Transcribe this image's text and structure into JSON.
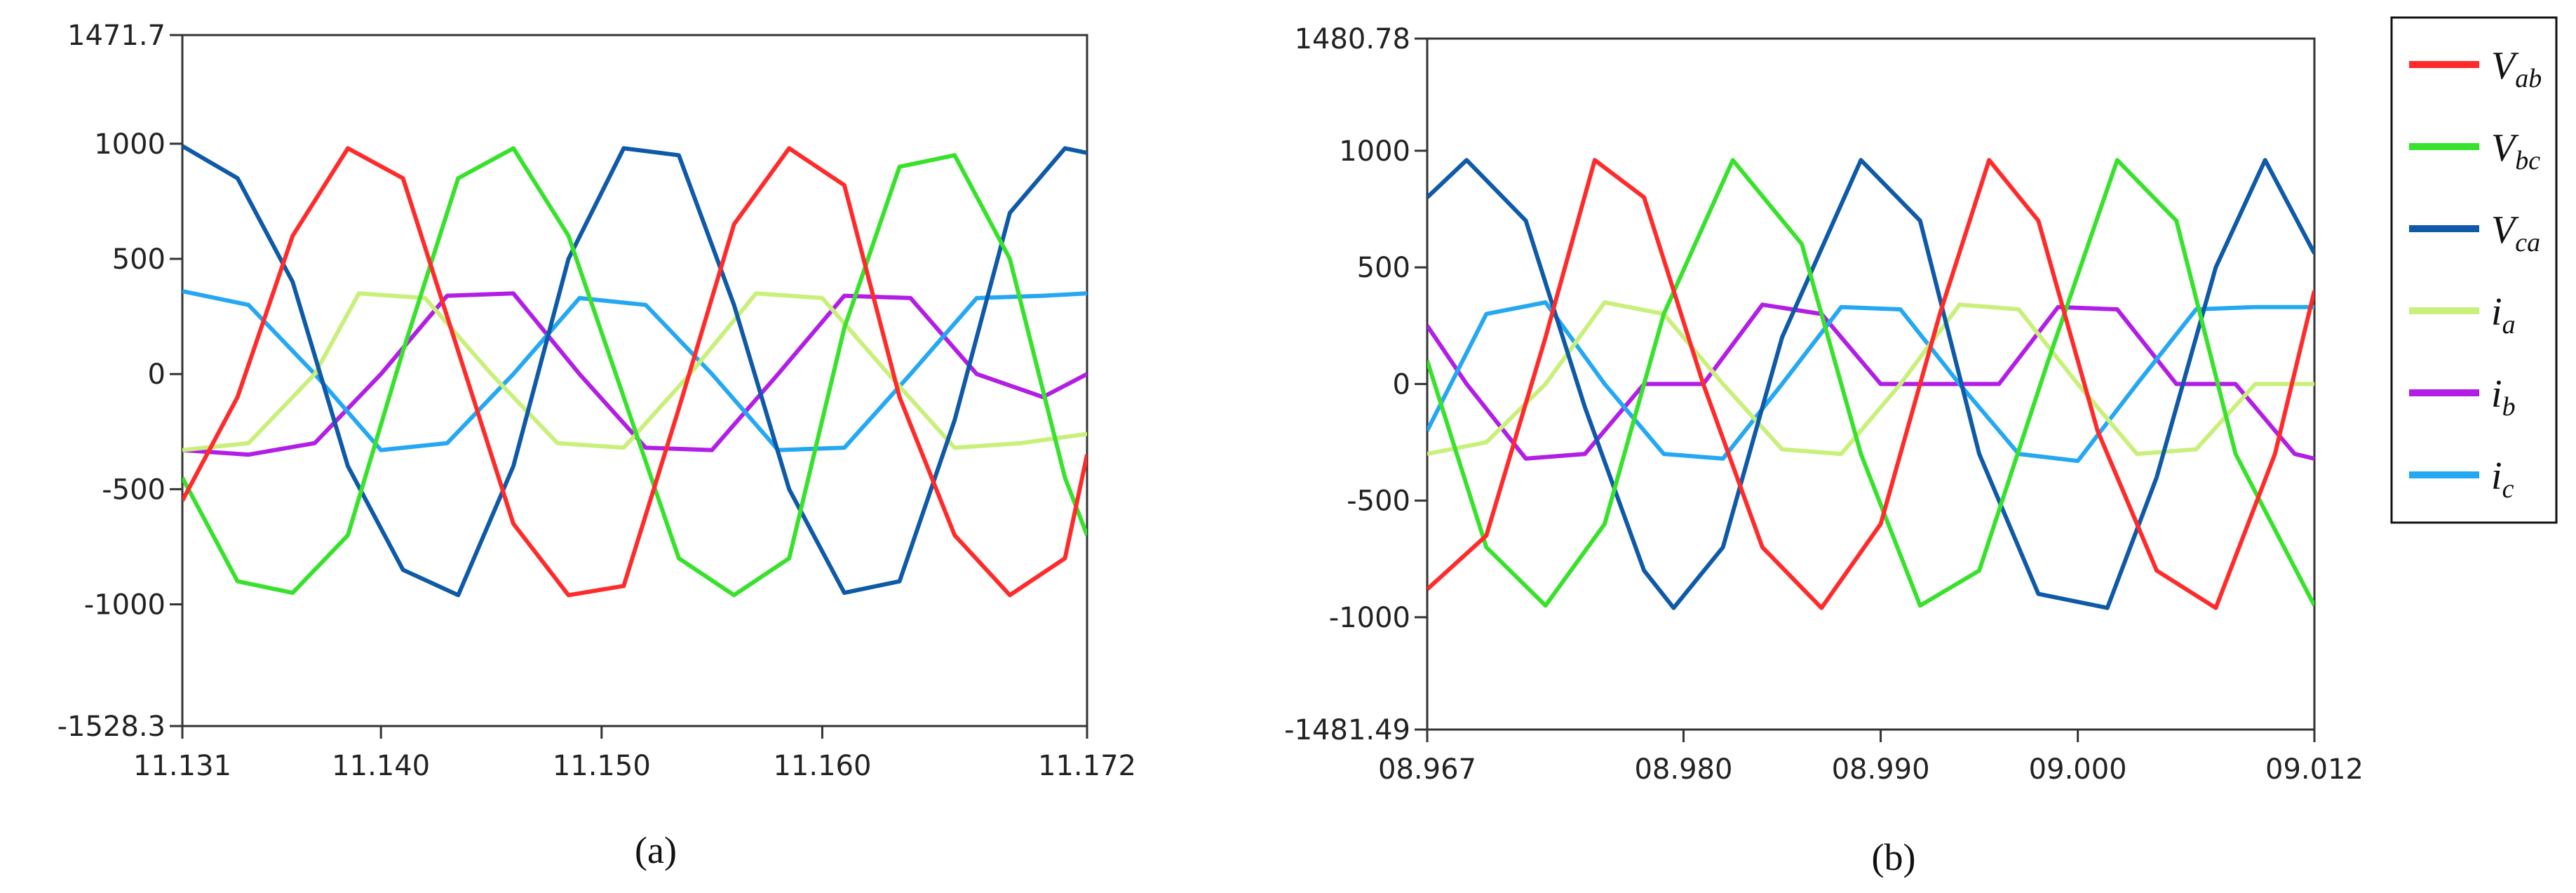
{
  "colors": {
    "Vab": "#ff2b2b",
    "Vbc": "#38e22c",
    "Vca": "#0f5aa8",
    "ia": "#c8f07a",
    "ib": "#b21ee6",
    "ic": "#25a8f2"
  },
  "legend": [
    {
      "key": "Vab",
      "main": "V",
      "sub": "ab"
    },
    {
      "key": "Vbc",
      "main": "V",
      "sub": "bc"
    },
    {
      "key": "Vca",
      "main": "V",
      "sub": "ca"
    },
    {
      "key": "ia",
      "main": "i",
      "sub": "a"
    },
    {
      "key": "ib",
      "main": "i",
      "sub": "b"
    },
    {
      "key": "ic",
      "main": "i",
      "sub": "c"
    }
  ],
  "chart_data": [
    {
      "type": "line",
      "caption": "(a)",
      "xlim": [
        11.131,
        11.172
      ],
      "ylim": [
        -1528.3,
        1471.7
      ],
      "x_ticks": [
        {
          "value": 11.131,
          "label": "11.131"
        },
        {
          "value": 11.14,
          "label": "11.140"
        },
        {
          "value": 11.15,
          "label": "11.150"
        },
        {
          "value": 11.16,
          "label": "11.160"
        },
        {
          "value": 11.172,
          "label": "11.172"
        }
      ],
      "y_ticks": [
        {
          "value": 1471.7,
          "label": "1471.7"
        },
        {
          "value": 1000,
          "label": "1000"
        },
        {
          "value": 500,
          "label": "500"
        },
        {
          "value": 0,
          "label": "0"
        },
        {
          "value": -500,
          "label": "-500"
        },
        {
          "value": -1000,
          "label": "-1000"
        },
        {
          "value": -1528.3,
          "label": "-1528.3"
        }
      ],
      "grid": false,
      "series": [
        {
          "key": "Vab",
          "x": [
            11.131,
            11.1335,
            11.136,
            11.1385,
            11.141,
            11.1435,
            11.146,
            11.1485,
            11.151,
            11.1535,
            11.156,
            11.1585,
            11.161,
            11.1635,
            11.166,
            11.1685,
            11.171,
            11.172
          ],
          "y": [
            -550,
            -100,
            600,
            980,
            850,
            100,
            -650,
            -960,
            -920,
            -150,
            650,
            980,
            820,
            -100,
            -700,
            -960,
            -800,
            -350
          ]
        },
        {
          "key": "Vbc",
          "x": [
            11.131,
            11.1335,
            11.136,
            11.1385,
            11.141,
            11.1435,
            11.146,
            11.1485,
            11.151,
            11.1535,
            11.156,
            11.1585,
            11.161,
            11.1635,
            11.166,
            11.1685,
            11.171,
            11.172
          ],
          "y": [
            -450,
            -900,
            -950,
            -700,
            100,
            850,
            980,
            600,
            -100,
            -800,
            -960,
            -800,
            200,
            900,
            950,
            500,
            -450,
            -700
          ]
        },
        {
          "key": "Vca",
          "x": [
            11.131,
            11.1335,
            11.136,
            11.1385,
            11.141,
            11.1435,
            11.146,
            11.1485,
            11.151,
            11.1535,
            11.156,
            11.1585,
            11.161,
            11.1635,
            11.166,
            11.1685,
            11.171,
            11.172
          ],
          "y": [
            990,
            850,
            400,
            -400,
            -850,
            -960,
            -400,
            500,
            980,
            950,
            300,
            -500,
            -950,
            -900,
            -200,
            700,
            980,
            960
          ]
        },
        {
          "key": "ia",
          "x": [
            11.131,
            11.134,
            11.137,
            11.139,
            11.142,
            11.145,
            11.148,
            11.151,
            11.154,
            11.157,
            11.16,
            11.163,
            11.166,
            11.169,
            11.172
          ],
          "y": [
            -330,
            -300,
            0,
            350,
            330,
            0,
            -300,
            -320,
            0,
            350,
            330,
            0,
            -320,
            -300,
            -260
          ]
        },
        {
          "key": "ib",
          "x": [
            11.131,
            11.134,
            11.137,
            11.14,
            11.143,
            11.146,
            11.149,
            11.152,
            11.155,
            11.158,
            11.161,
            11.164,
            11.167,
            11.17,
            11.172
          ],
          "y": [
            -330,
            -350,
            -300,
            0,
            340,
            350,
            0,
            -320,
            -330,
            0,
            340,
            330,
            0,
            -100,
            0
          ]
        },
        {
          "key": "ic",
          "x": [
            11.131,
            11.134,
            11.137,
            11.14,
            11.143,
            11.146,
            11.149,
            11.152,
            11.155,
            11.158,
            11.161,
            11.164,
            11.167,
            11.17,
            11.172
          ],
          "y": [
            360,
            300,
            0,
            -330,
            -300,
            0,
            330,
            300,
            0,
            -330,
            -320,
            0,
            330,
            340,
            350
          ]
        }
      ]
    },
    {
      "type": "line",
      "caption": "(b)",
      "xlim": [
        8.967,
        9.012
      ],
      "ylim": [
        -1481.49,
        1480.78
      ],
      "x_ticks": [
        {
          "value": 8.967,
          "label": "08.967"
        },
        {
          "value": 8.98,
          "label": "08.980"
        },
        {
          "value": 8.99,
          "label": "08.990"
        },
        {
          "value": 9.0,
          "label": "09.000"
        },
        {
          "value": 9.012,
          "label": "09.012"
        }
      ],
      "y_ticks": [
        {
          "value": 1480.78,
          "label": "1480.78"
        },
        {
          "value": 1000,
          "label": "1000"
        },
        {
          "value": 500,
          "label": "500"
        },
        {
          "value": 0,
          "label": "0"
        },
        {
          "value": -500,
          "label": "-500"
        },
        {
          "value": -1000,
          "label": "-1000"
        },
        {
          "value": -1481.49,
          "label": "-1481.49"
        }
      ],
      "grid": false,
      "series": [
        {
          "key": "Vab",
          "x": [
            8.967,
            8.97,
            8.973,
            8.9755,
            8.978,
            8.981,
            8.984,
            8.987,
            8.99,
            8.993,
            8.9955,
            8.998,
            9.001,
            9.004,
            9.007,
            9.01,
            9.012
          ],
          "y": [
            -880,
            -650,
            200,
            960,
            800,
            0,
            -700,
            -960,
            -600,
            300,
            960,
            700,
            -200,
            -800,
            -960,
            -300,
            400
          ]
        },
        {
          "key": "Vbc",
          "x": [
            8.967,
            8.97,
            8.973,
            8.976,
            8.979,
            8.9825,
            8.986,
            8.989,
            8.992,
            8.995,
            8.9985,
            9.002,
            9.005,
            9.008,
            9.012
          ],
          "y": [
            100,
            -700,
            -950,
            -600,
            300,
            960,
            600,
            -300,
            -950,
            -800,
            100,
            960,
            700,
            -300,
            -950
          ]
        },
        {
          "key": "Vca",
          "x": [
            8.967,
            8.969,
            8.972,
            8.975,
            8.978,
            8.9795,
            8.982,
            8.985,
            8.989,
            8.992,
            8.995,
            8.998,
            9.0015,
            9.004,
            9.007,
            9.0095,
            9.012
          ],
          "y": [
            800,
            960,
            700,
            -100,
            -800,
            -960,
            -700,
            200,
            960,
            700,
            -300,
            -900,
            -960,
            -400,
            500,
            960,
            560
          ]
        },
        {
          "key": "ia",
          "x": [
            8.967,
            8.97,
            8.973,
            8.976,
            8.979,
            8.982,
            8.985,
            8.988,
            8.991,
            8.994,
            8.997,
            9.0,
            9.003,
            9.006,
            9.009,
            9.012
          ],
          "y": [
            -300,
            -250,
            0,
            350,
            300,
            0,
            -280,
            -300,
            0,
            340,
            320,
            0,
            -300,
            -280,
            0,
            0
          ]
        },
        {
          "key": "ib",
          "x": [
            8.967,
            8.969,
            8.972,
            8.975,
            8.978,
            8.981,
            8.984,
            8.987,
            8.99,
            8.993,
            8.996,
            8.999,
            9.002,
            9.005,
            9.008,
            9.011,
            9.012
          ],
          "y": [
            250,
            0,
            -320,
            -300,
            0,
            0,
            340,
            300,
            0,
            0,
            0,
            330,
            320,
            0,
            0,
            -300,
            -320
          ]
        },
        {
          "key": "ic",
          "x": [
            8.967,
            8.97,
            8.973,
            8.976,
            8.979,
            8.982,
            8.985,
            8.988,
            8.991,
            8.994,
            8.997,
            9.0,
            9.003,
            9.006,
            9.009,
            9.012
          ],
          "y": [
            -200,
            300,
            350,
            0,
            -300,
            -320,
            0,
            330,
            320,
            0,
            -300,
            -330,
            0,
            320,
            330,
            330
          ]
        }
      ]
    }
  ]
}
